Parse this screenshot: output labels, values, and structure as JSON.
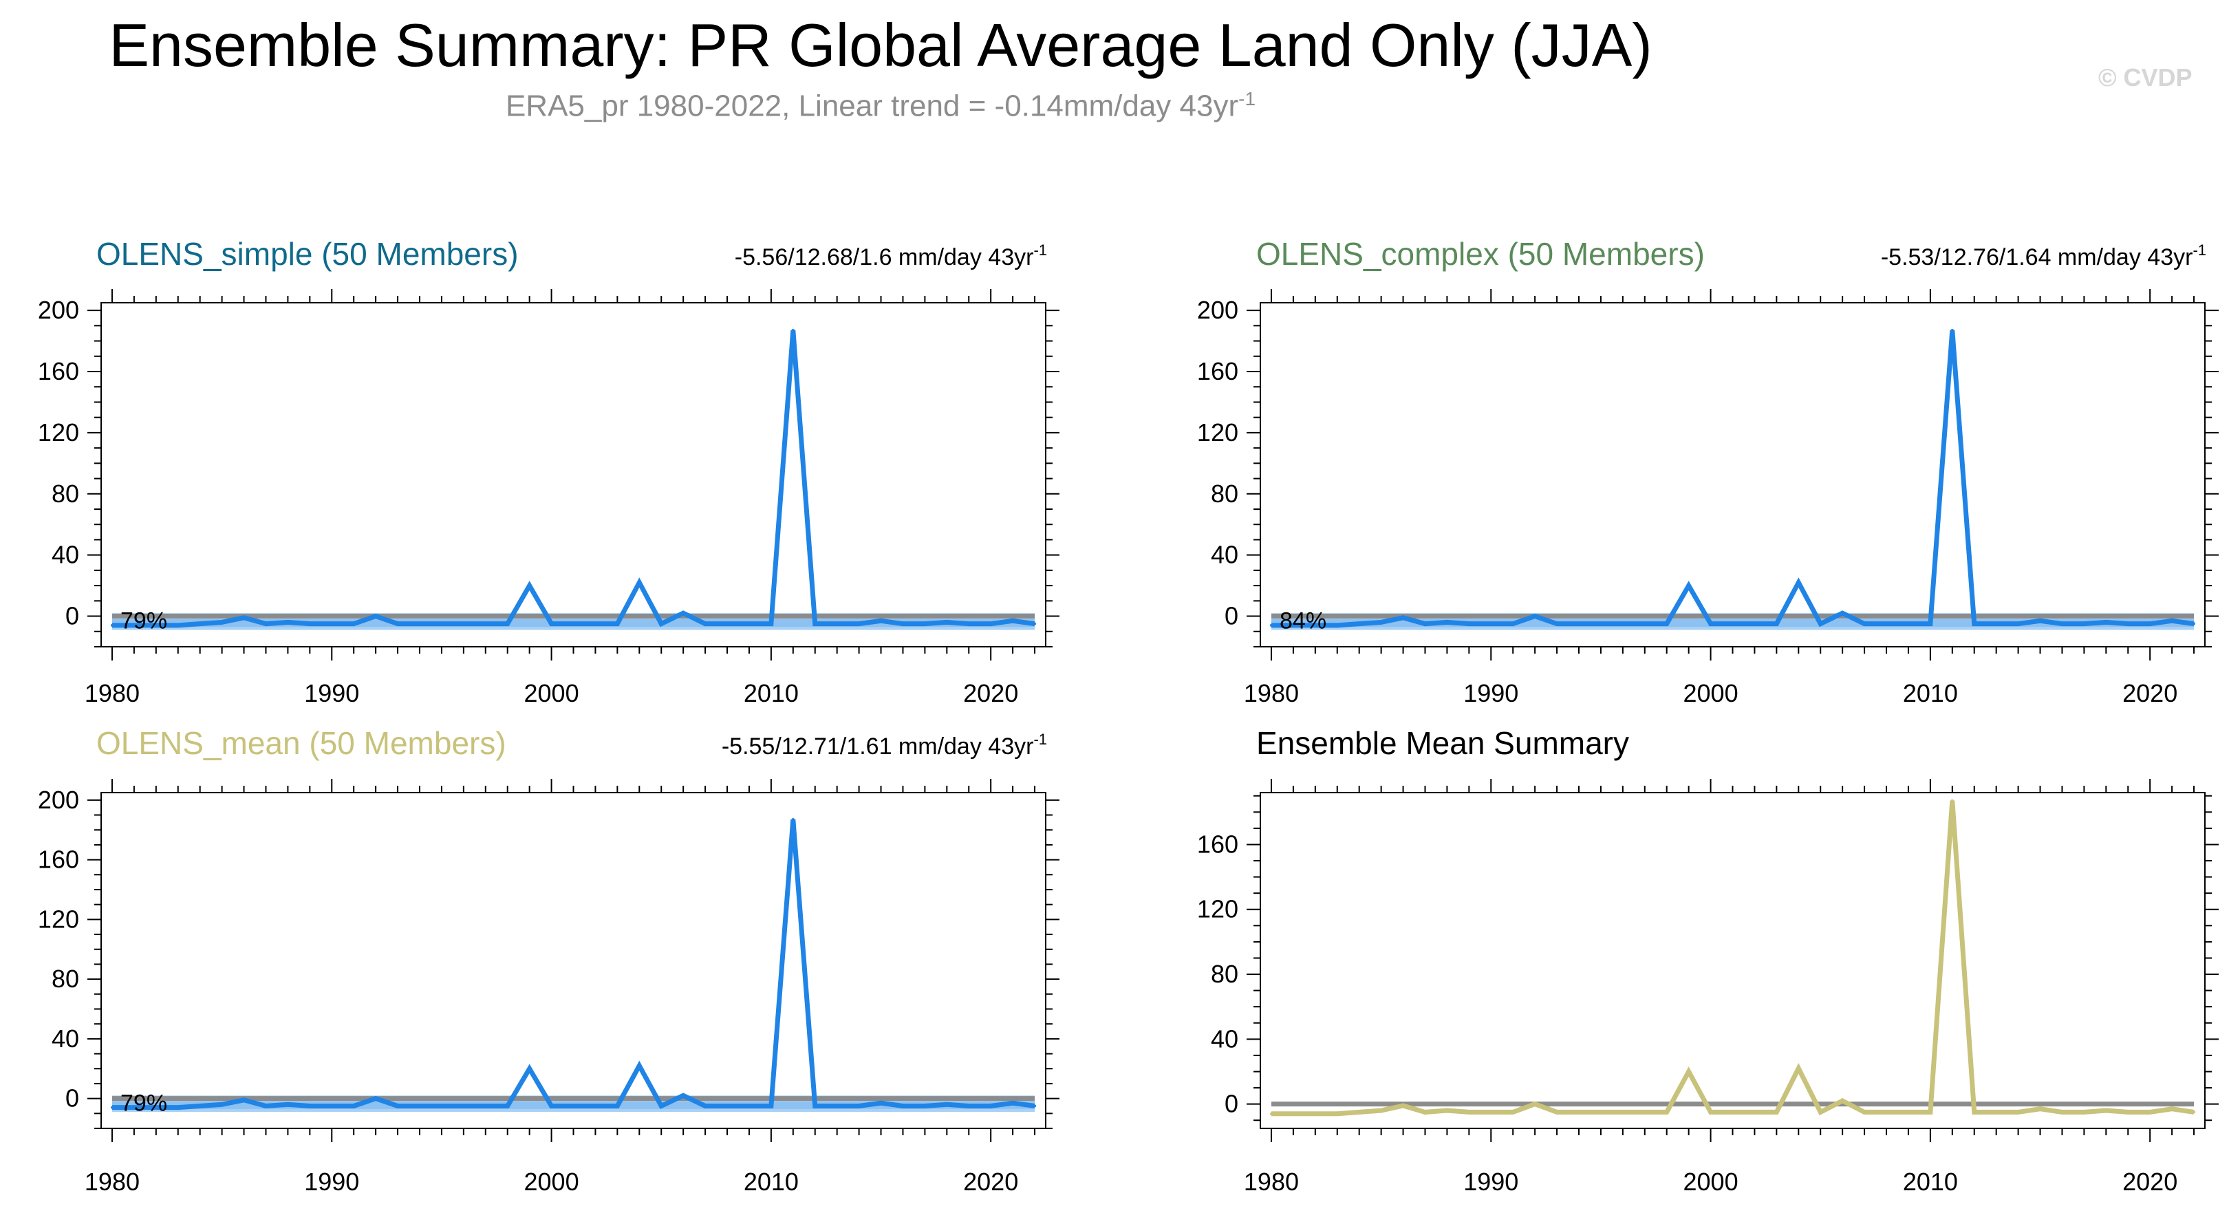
{
  "header": {
    "title": "Ensemble Summary: PR Global Average Land Only (JJA)",
    "subtitle": "ERA5_pr 1980-2022, Linear trend = -0.14mm/day 43yr",
    "subtitle_sup": "-1",
    "copyright": "© CVDP"
  },
  "colors": {
    "line_blue": "#1f84e6",
    "band_light": "#a9d1f5",
    "band_dark": "#6fb1ee",
    "zero_line": "#8c8c8c",
    "mean_line": "#c8c27a",
    "title_simple": "#0f6a8c",
    "title_complex": "#5a8a5a",
    "title_mean": "#c8c27a",
    "title_summary": "#000000"
  },
  "chart_data": [
    {
      "type": "line",
      "title": "OLENS_simple (50 Members)",
      "title_color": "#0f6a8c",
      "stat": "-5.56/12.68/1.6 mm/day 43yr",
      "stat_sup": "-1",
      "percent_label": "79%",
      "x": [
        1980,
        1981,
        1982,
        1983,
        1984,
        1985,
        1986,
        1987,
        1988,
        1989,
        1990,
        1991,
        1992,
        1993,
        1994,
        1995,
        1996,
        1997,
        1998,
        1999,
        2000,
        2001,
        2002,
        2003,
        2004,
        2005,
        2006,
        2007,
        2008,
        2009,
        2010,
        2011,
        2012,
        2013,
        2014,
        2015,
        2016,
        2017,
        2018,
        2019,
        2020,
        2021,
        2022
      ],
      "values": [
        -6,
        -6,
        -6,
        -6,
        -5,
        -4,
        -1,
        -5,
        -4,
        -5,
        -5,
        -5,
        0,
        -5,
        -5,
        -5,
        -5,
        -5,
        -5,
        20,
        -5,
        -5,
        -5,
        -5,
        22,
        -5,
        2,
        -5,
        -5,
        -5,
        -5,
        187,
        -5,
        -5,
        -5,
        -3,
        -5,
        -5,
        -4,
        -5,
        -5,
        -3,
        -5
      ],
      "xticks": [
        1980,
        1990,
        2000,
        2010,
        2020
      ],
      "yticks": [
        0,
        40,
        80,
        120,
        160,
        200
      ],
      "ylim": [
        -20,
        205
      ],
      "xlim": [
        1979.5,
        2022.5
      ],
      "band": true,
      "line_color": "#1f84e6"
    },
    {
      "type": "line",
      "title": "OLENS_complex (50 Members)",
      "title_color": "#5a8a5a",
      "stat": "-5.53/12.76/1.64 mm/day 43yr",
      "stat_sup": "-1",
      "percent_label": "84%",
      "x": [
        1980,
        1981,
        1982,
        1983,
        1984,
        1985,
        1986,
        1987,
        1988,
        1989,
        1990,
        1991,
        1992,
        1993,
        1994,
        1995,
        1996,
        1997,
        1998,
        1999,
        2000,
        2001,
        2002,
        2003,
        2004,
        2005,
        2006,
        2007,
        2008,
        2009,
        2010,
        2011,
        2012,
        2013,
        2014,
        2015,
        2016,
        2017,
        2018,
        2019,
        2020,
        2021,
        2022
      ],
      "values": [
        -6,
        -6,
        -6,
        -6,
        -5,
        -4,
        -1,
        -5,
        -4,
        -5,
        -5,
        -5,
        0,
        -5,
        -5,
        -5,
        -5,
        -5,
        -5,
        20,
        -5,
        -5,
        -5,
        -5,
        22,
        -5,
        2,
        -5,
        -5,
        -5,
        -5,
        187,
        -5,
        -5,
        -5,
        -3,
        -5,
        -5,
        -4,
        -5,
        -5,
        -3,
        -5
      ],
      "xticks": [
        1980,
        1990,
        2000,
        2010,
        2020
      ],
      "yticks": [
        0,
        40,
        80,
        120,
        160,
        200
      ],
      "ylim": [
        -20,
        205
      ],
      "xlim": [
        1979.5,
        2022.5
      ],
      "band": true,
      "line_color": "#1f84e6"
    },
    {
      "type": "line",
      "title": "OLENS_mean (50 Members)",
      "title_color": "#c8c27a",
      "stat": "-5.55/12.71/1.61 mm/day 43yr",
      "stat_sup": "-1",
      "percent_label": "79%",
      "x": [
        1980,
        1981,
        1982,
        1983,
        1984,
        1985,
        1986,
        1987,
        1988,
        1989,
        1990,
        1991,
        1992,
        1993,
        1994,
        1995,
        1996,
        1997,
        1998,
        1999,
        2000,
        2001,
        2002,
        2003,
        2004,
        2005,
        2006,
        2007,
        2008,
        2009,
        2010,
        2011,
        2012,
        2013,
        2014,
        2015,
        2016,
        2017,
        2018,
        2019,
        2020,
        2021,
        2022
      ],
      "values": [
        -6,
        -6,
        -6,
        -6,
        -5,
        -4,
        -1,
        -5,
        -4,
        -5,
        -5,
        -5,
        0,
        -5,
        -5,
        -5,
        -5,
        -5,
        -5,
        20,
        -5,
        -5,
        -5,
        -5,
        22,
        -5,
        2,
        -5,
        -5,
        -5,
        -5,
        187,
        -5,
        -5,
        -5,
        -3,
        -5,
        -5,
        -4,
        -5,
        -5,
        -3,
        -5
      ],
      "xticks": [
        1980,
        1990,
        2000,
        2010,
        2020
      ],
      "yticks": [
        0,
        40,
        80,
        120,
        160,
        200
      ],
      "ylim": [
        -20,
        205
      ],
      "xlim": [
        1979.5,
        2022.5
      ],
      "band": true,
      "line_color": "#1f84e6"
    },
    {
      "type": "line",
      "title": "Ensemble Mean Summary",
      "title_color": "#000000",
      "stat": "",
      "stat_sup": "",
      "percent_label": "",
      "x": [
        1980,
        1981,
        1982,
        1983,
        1984,
        1985,
        1986,
        1987,
        1988,
        1989,
        1990,
        1991,
        1992,
        1993,
        1994,
        1995,
        1996,
        1997,
        1998,
        1999,
        2000,
        2001,
        2002,
        2003,
        2004,
        2005,
        2006,
        2007,
        2008,
        2009,
        2010,
        2011,
        2012,
        2013,
        2014,
        2015,
        2016,
        2017,
        2018,
        2019,
        2020,
        2021,
        2022
      ],
      "values": [
        -6,
        -6,
        -6,
        -6,
        -5,
        -4,
        -1,
        -5,
        -4,
        -5,
        -5,
        -5,
        0,
        -5,
        -5,
        -5,
        -5,
        -5,
        -5,
        20,
        -5,
        -5,
        -5,
        -5,
        22,
        -5,
        2,
        -5,
        -5,
        -5,
        -5,
        187,
        -5,
        -5,
        -5,
        -3,
        -5,
        -5,
        -4,
        -5,
        -5,
        -3,
        -5
      ],
      "xticks": [
        1980,
        1990,
        2000,
        2010,
        2020
      ],
      "yticks": [
        0,
        40,
        80,
        120,
        160
      ],
      "ylim": [
        -15,
        192
      ],
      "xlim": [
        1979.5,
        2022.5
      ],
      "band": false,
      "line_color": "#c8c27a"
    }
  ]
}
